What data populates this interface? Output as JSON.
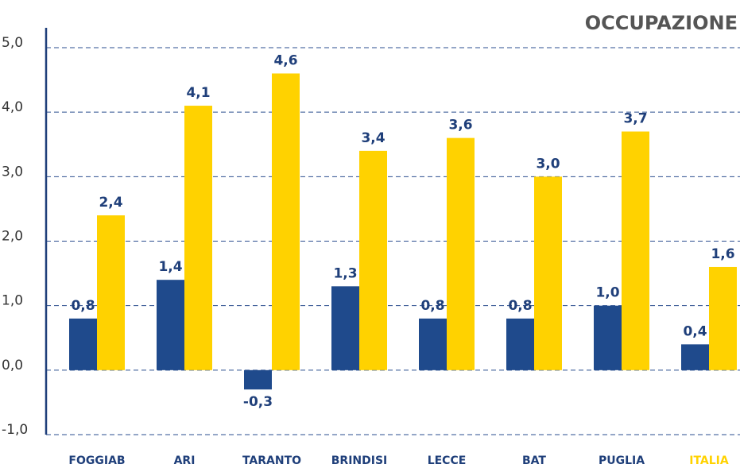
{
  "chart_data": {
    "type": "bar",
    "title": "OCCUPAZIONE",
    "categories": [
      "FOGGIAB",
      "ARI",
      "TARANTO",
      "BRINDISI",
      "LECCE",
      "BAT",
      "PUGLIA",
      "ITALIA"
    ],
    "category_label_colors": [
      "#1f3f7a",
      "#1f3f7a",
      "#1f3f7a",
      "#1f3f7a",
      "#1f3f7a",
      "#1f3f7a",
      "#1f3f7a",
      "#ffd200"
    ],
    "series": [
      {
        "color": "#1f4a8c",
        "values": [
          0.8,
          1.4,
          -0.3,
          1.3,
          0.8,
          0.8,
          1.0,
          0.4
        ],
        "value_labels": [
          "0,8",
          "1,4",
          "-0,3",
          "1,3",
          "0,8",
          "0,8",
          "1,0",
          "0,4"
        ]
      },
      {
        "color": "#ffd200",
        "values": [
          2.4,
          4.1,
          4.6,
          3.4,
          3.6,
          3.0,
          3.7,
          1.6
        ],
        "value_labels": [
          "2,4",
          "4,1",
          "4,6",
          "3,4",
          "3,6",
          "3,0",
          "3,7",
          "1,6"
        ]
      }
    ],
    "ylim": [
      -1,
      5
    ],
    "yticks": [
      {
        "value": -1,
        "label": "-1,0"
      },
      {
        "value": 0,
        "label": "0,0"
      },
      {
        "value": 1,
        "label": "1,0"
      },
      {
        "value": 2,
        "label": "2,0"
      },
      {
        "value": 3,
        "label": "3,0"
      },
      {
        "value": 4,
        "label": "4,0"
      },
      {
        "value": 5,
        "label": "5,0"
      }
    ],
    "grid": true
  }
}
